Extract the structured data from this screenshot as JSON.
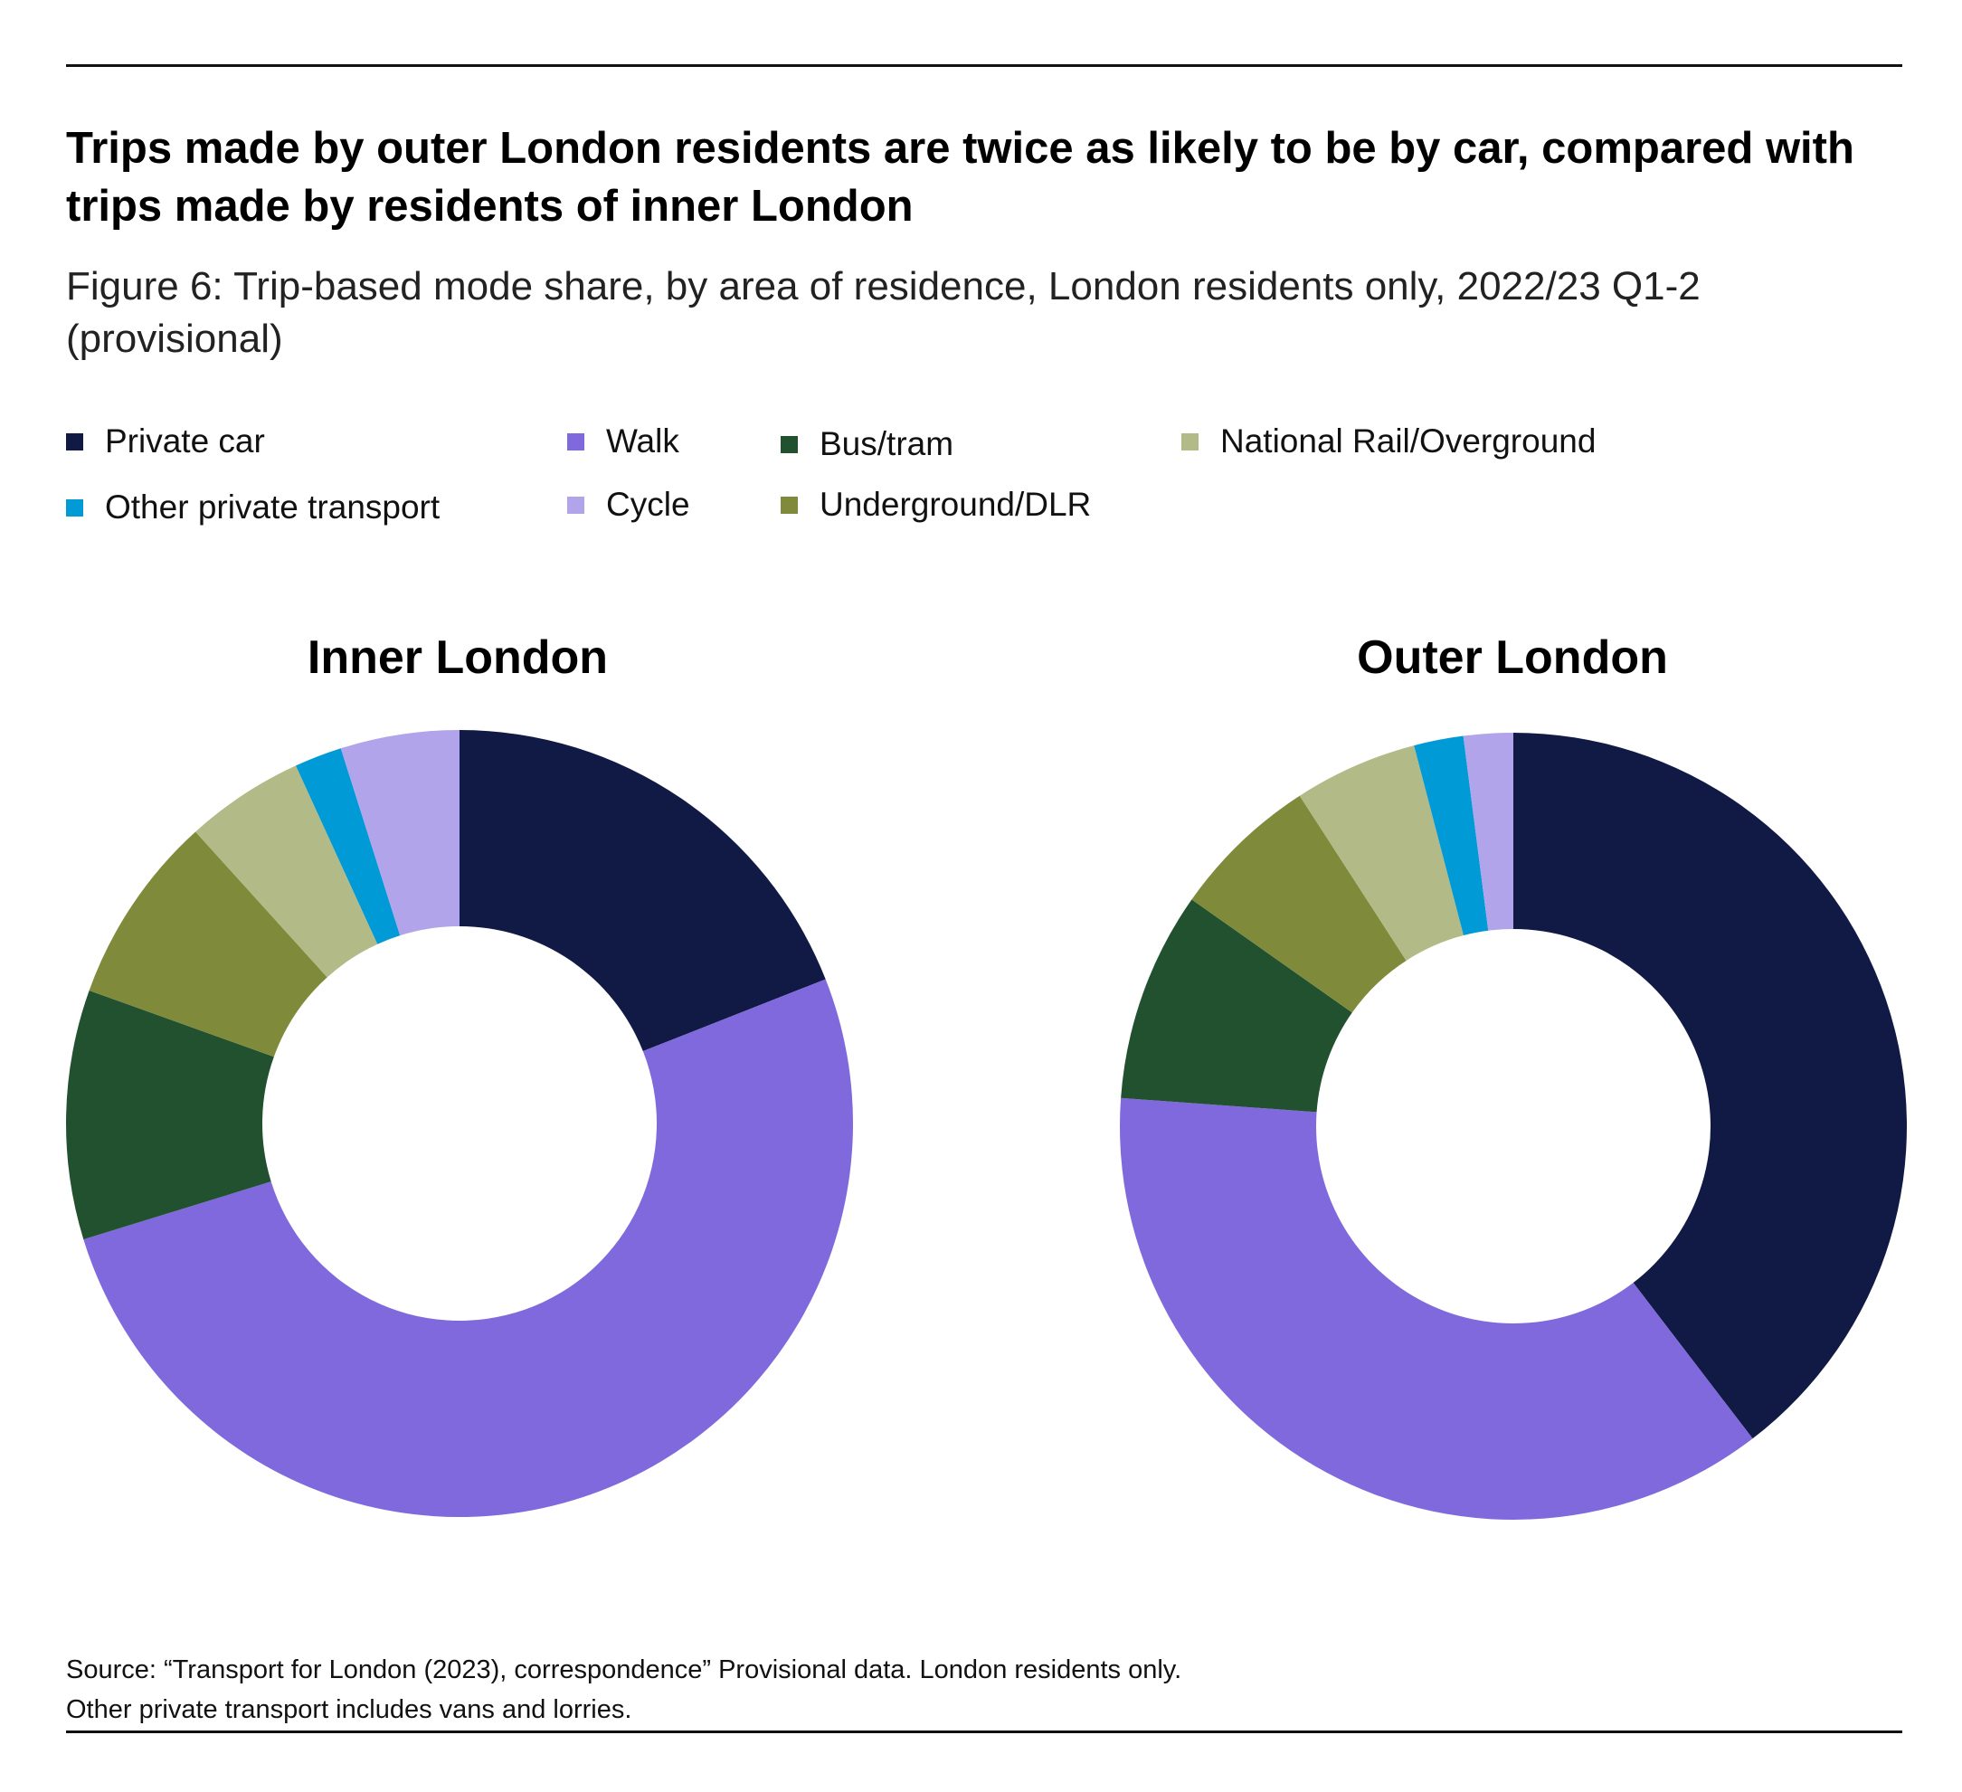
{
  "header": {
    "title": "Trips made by outer London residents are twice as likely to be by car, compared with trips made by residents of inner London",
    "subtitle": "Figure 6: Trip-based mode share, by area of residence, London residents only, 2022/23 Q1-2 (provisional)"
  },
  "legend": [
    {
      "label": "Private car",
      "color": "#101a45"
    },
    {
      "label": "Walk",
      "color": "#7f69dc"
    },
    {
      "label": "Bus/tram",
      "color": "#22512f"
    },
    {
      "label": "National Rail/Overground",
      "color": "#b2bb88"
    },
    {
      "label": "Other private transport",
      "color": "#009ad6"
    },
    {
      "label": "Cycle",
      "color": "#b1a4ea"
    },
    {
      "label": "Underground/DLR",
      "color": "#7f8b3a"
    }
  ],
  "chart_data": [
    {
      "type": "pie",
      "donut": true,
      "title": "Inner London",
      "categories": [
        "Private car",
        "Walk",
        "Bus/tram",
        "Underground/DLR",
        "National Rail/Overground",
        "Other private transport",
        "Cycle"
      ],
      "values": [
        19.5,
        52.5,
        10.5,
        8,
        5,
        2,
        5
      ],
      "colors": [
        "#101a45",
        "#7f69dc",
        "#22512f",
        "#7f8b3a",
        "#b2bb88",
        "#009ad6",
        "#b1a4ea"
      ]
    },
    {
      "type": "pie",
      "donut": true,
      "title": "Outer London",
      "categories": [
        "Private car",
        "Walk",
        "Bus/tram",
        "Underground/DLR",
        "National Rail/Overground",
        "Other private transport",
        "Cycle"
      ],
      "values": [
        39,
        36,
        8.5,
        6,
        5,
        2,
        2
      ],
      "colors": [
        "#101a45",
        "#7f69dc",
        "#22512f",
        "#7f8b3a",
        "#b2bb88",
        "#009ad6",
        "#b1a4ea"
      ]
    }
  ],
  "footer": {
    "source_line1": "Source: “Transport for London (2023), correspondence”  Provisional data. London residents only.",
    "source_line2": "Other private transport includes vans and lorries."
  }
}
